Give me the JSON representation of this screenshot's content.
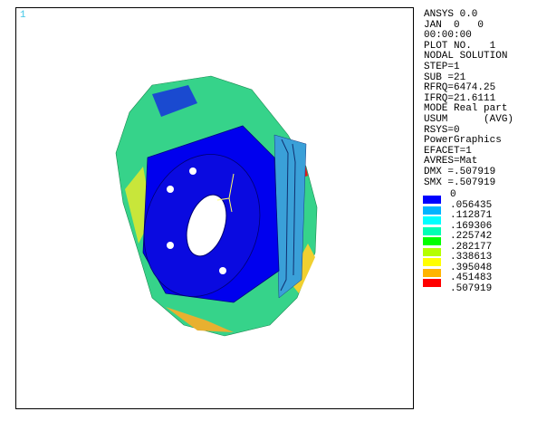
{
  "viewport": {
    "window_number": "1"
  },
  "info": {
    "lines": [
      "ANSYS 0.0",
      "JAN  0   0",
      "00:00:00",
      "PLOT NO.   1",
      "NODAL SOLUTION",
      "STEP=1",
      "SUB =21",
      "RFRQ=6474.25",
      "IFRQ=21.6111",
      "MODE Real part",
      "USUM      (AVG)",
      "RSYS=0",
      "PowerGraphics",
      "EFACET=1",
      "AVRES=Mat",
      "DMX =.507919",
      "SMX =.507919"
    ]
  },
  "legend": {
    "labels": [
      "0",
      ".056435",
      ".112871",
      ".169306",
      ".225742",
      ".282177",
      ".338613",
      ".395048",
      ".451483",
      ".507919"
    ],
    "colors": [
      "#0000ff",
      "#00b4ff",
      "#00ffff",
      "#00ffb4",
      "#00ff00",
      "#b4ff00",
      "#ffff00",
      "#ffb400",
      "#ff0000"
    ]
  }
}
